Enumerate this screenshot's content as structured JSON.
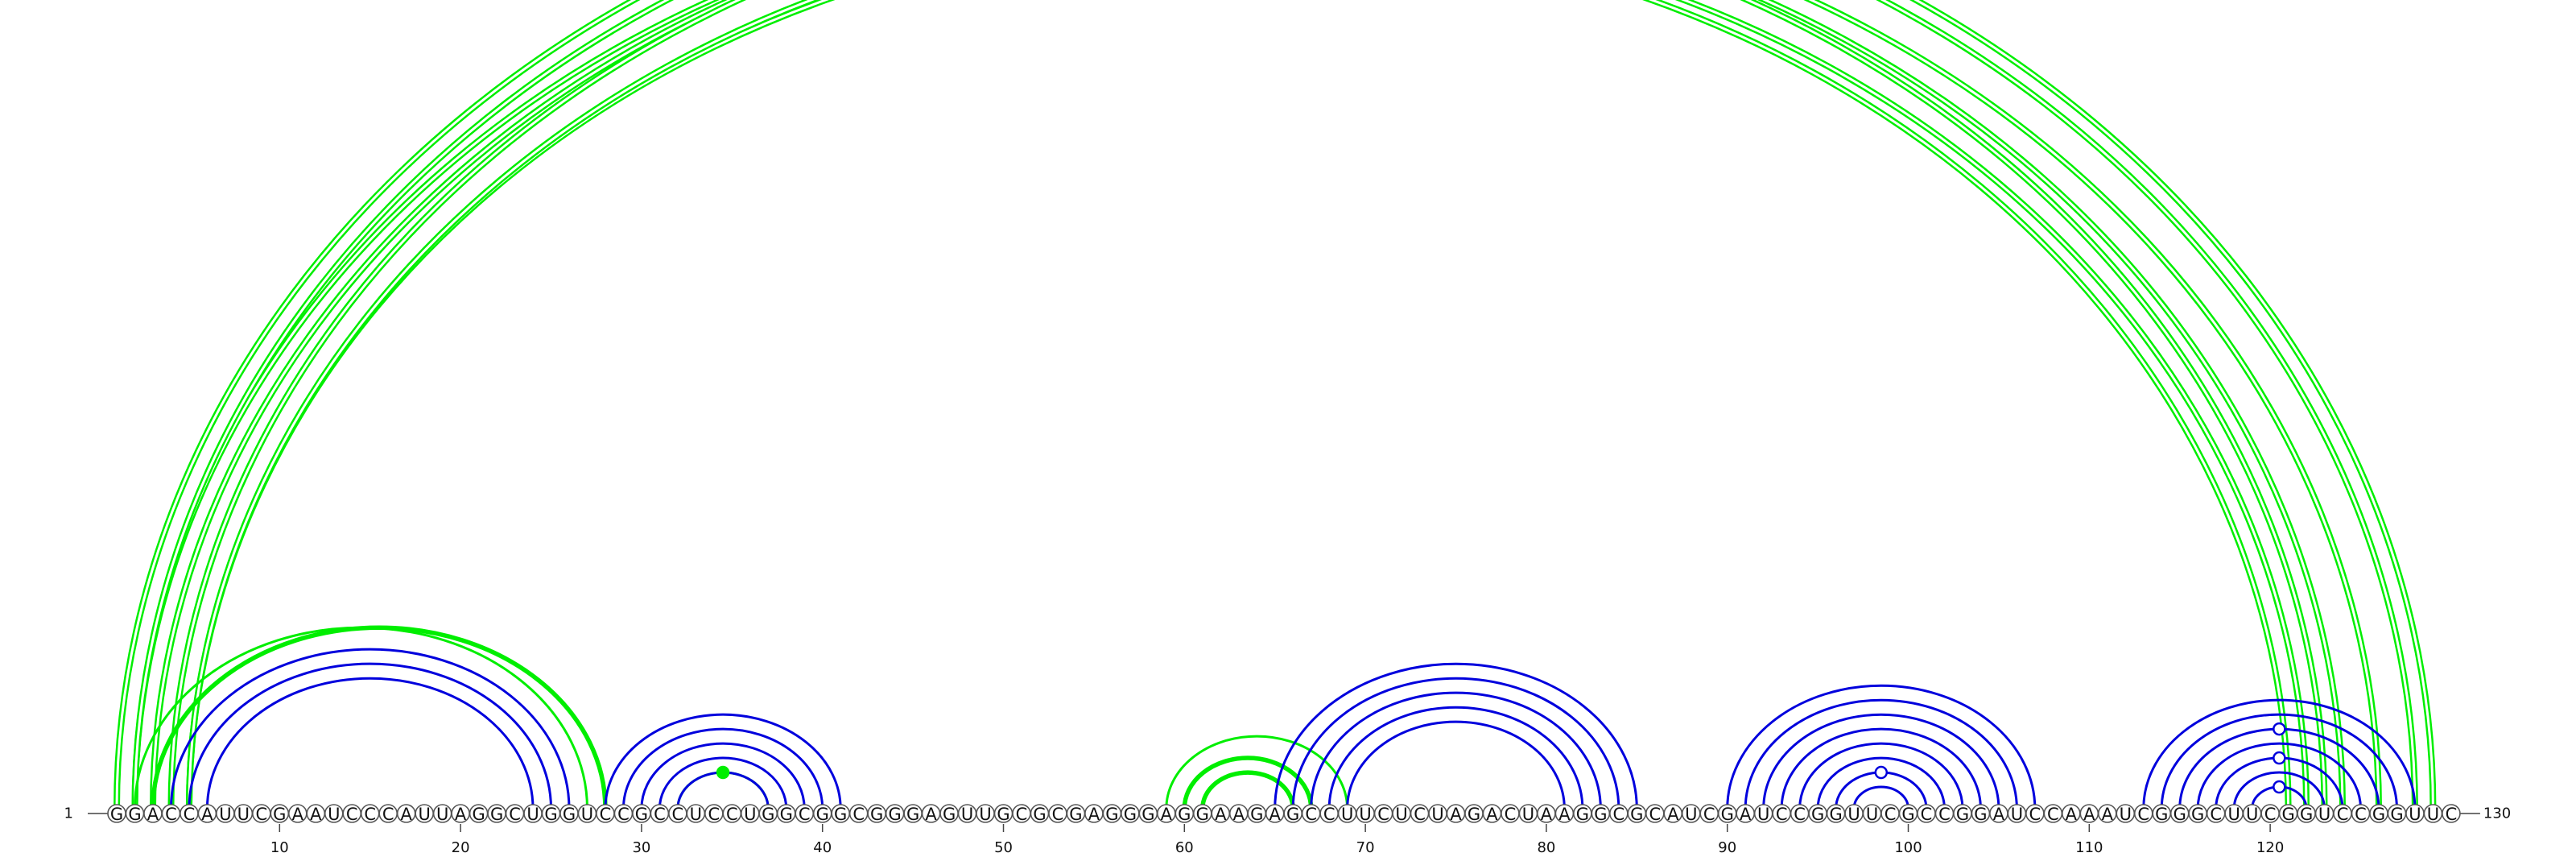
{
  "sequence": "GGACCAUUCGAAUCCCAUUAGGCUGGUCCGCCUCCUGGCGGCGGGAGUUGCGCGAGGGAGGAAGAGCCUUCUCUAGACUAAGGCGCAUCGAUCCGGUUCGCCGGAUCCAAAUCGGGCUUCGGUCCGGUUC",
  "start_label": "1",
  "end_label": "130",
  "tick_labels": [
    {
      "pos": 10,
      "label": "10"
    },
    {
      "pos": 20,
      "label": "20"
    },
    {
      "pos": 30,
      "label": "30"
    },
    {
      "pos": 40,
      "label": "40"
    },
    {
      "pos": 50,
      "label": "50"
    },
    {
      "pos": 60,
      "label": "60"
    },
    {
      "pos": 70,
      "label": "70"
    },
    {
      "pos": 80,
      "label": "80"
    },
    {
      "pos": 90,
      "label": "90"
    },
    {
      "pos": 100,
      "label": "100"
    },
    {
      "pos": 110,
      "label": "110"
    },
    {
      "pos": 120,
      "label": "120"
    }
  ],
  "colors": {
    "green": "#00ee00",
    "blue": "#0000dd"
  },
  "arcs": [
    {
      "i": 1,
      "j": 129,
      "color": "green",
      "style": "double"
    },
    {
      "i": 2,
      "j": 123,
      "color": "green",
      "style": "double"
    },
    {
      "i": 2,
      "j": 128,
      "color": "green",
      "style": "double",
      "marker": "open-circle"
    },
    {
      "i": 3,
      "j": 124,
      "color": "green",
      "style": "double"
    },
    {
      "i": 4,
      "j": 126,
      "color": "green",
      "style": "double"
    },
    {
      "i": 5,
      "j": 121,
      "color": "green",
      "style": "double"
    },
    {
      "i": 5,
      "j": 122,
      "color": "green",
      "style": "double"
    },
    {
      "i": 2,
      "j": 27,
      "color": "green",
      "style": "single"
    },
    {
      "i": 3,
      "j": 28,
      "color": "green",
      "style": "bold"
    },
    {
      "i": 4,
      "j": 26,
      "color": "blue",
      "style": "single"
    },
    {
      "i": 5,
      "j": 25,
      "color": "blue",
      "style": "single"
    },
    {
      "i": 6,
      "j": 24,
      "color": "blue",
      "style": "single"
    },
    {
      "i": 32,
      "j": 37,
      "color": "green",
      "style": "single",
      "marker": "filled-circle"
    },
    {
      "i": 28,
      "j": 41,
      "color": "blue",
      "style": "single"
    },
    {
      "i": 29,
      "j": 40,
      "color": "blue",
      "style": "single"
    },
    {
      "i": 30,
      "j": 39,
      "color": "blue",
      "style": "single"
    },
    {
      "i": 31,
      "j": 38,
      "color": "blue",
      "style": "single"
    },
    {
      "i": 32,
      "j": 37,
      "color": "blue",
      "style": "single"
    },
    {
      "i": 59,
      "j": 69,
      "color": "green",
      "style": "single"
    },
    {
      "i": 60,
      "j": 67,
      "color": "green",
      "style": "bold"
    },
    {
      "i": 61,
      "j": 66,
      "color": "green",
      "style": "bold"
    },
    {
      "i": 65,
      "j": 85,
      "color": "blue",
      "style": "single"
    },
    {
      "i": 66,
      "j": 84,
      "color": "blue",
      "style": "single"
    },
    {
      "i": 67,
      "j": 83,
      "color": "blue",
      "style": "single"
    },
    {
      "i": 68,
      "j": 82,
      "color": "blue",
      "style": "single"
    },
    {
      "i": 69,
      "j": 81,
      "color": "blue",
      "style": "single"
    },
    {
      "i": 90,
      "j": 107,
      "color": "blue",
      "style": "single"
    },
    {
      "i": 91,
      "j": 106,
      "color": "blue",
      "style": "single"
    },
    {
      "i": 92,
      "j": 105,
      "color": "blue",
      "style": "single"
    },
    {
      "i": 93,
      "j": 104,
      "color": "blue",
      "style": "single"
    },
    {
      "i": 94,
      "j": 103,
      "color": "blue",
      "style": "single"
    },
    {
      "i": 95,
      "j": 102,
      "color": "blue",
      "style": "single"
    },
    {
      "i": 96,
      "j": 101,
      "color": "blue",
      "style": "single",
      "marker": "open-circle"
    },
    {
      "i": 97,
      "j": 100,
      "color": "blue",
      "style": "single"
    },
    {
      "i": 113,
      "j": 128,
      "color": "blue",
      "style": "single"
    },
    {
      "i": 114,
      "j": 127,
      "color": "blue",
      "style": "single"
    },
    {
      "i": 115,
      "j": 126,
      "color": "blue",
      "style": "single",
      "marker": "open-circle"
    },
    {
      "i": 116,
      "j": 125,
      "color": "blue",
      "style": "single"
    },
    {
      "i": 117,
      "j": 124,
      "color": "blue",
      "style": "single",
      "marker": "open-circle"
    },
    {
      "i": 118,
      "j": 123,
      "color": "blue",
      "style": "single"
    },
    {
      "i": 119,
      "j": 122,
      "color": "blue",
      "style": "single",
      "marker": "open-circle"
    }
  ]
}
